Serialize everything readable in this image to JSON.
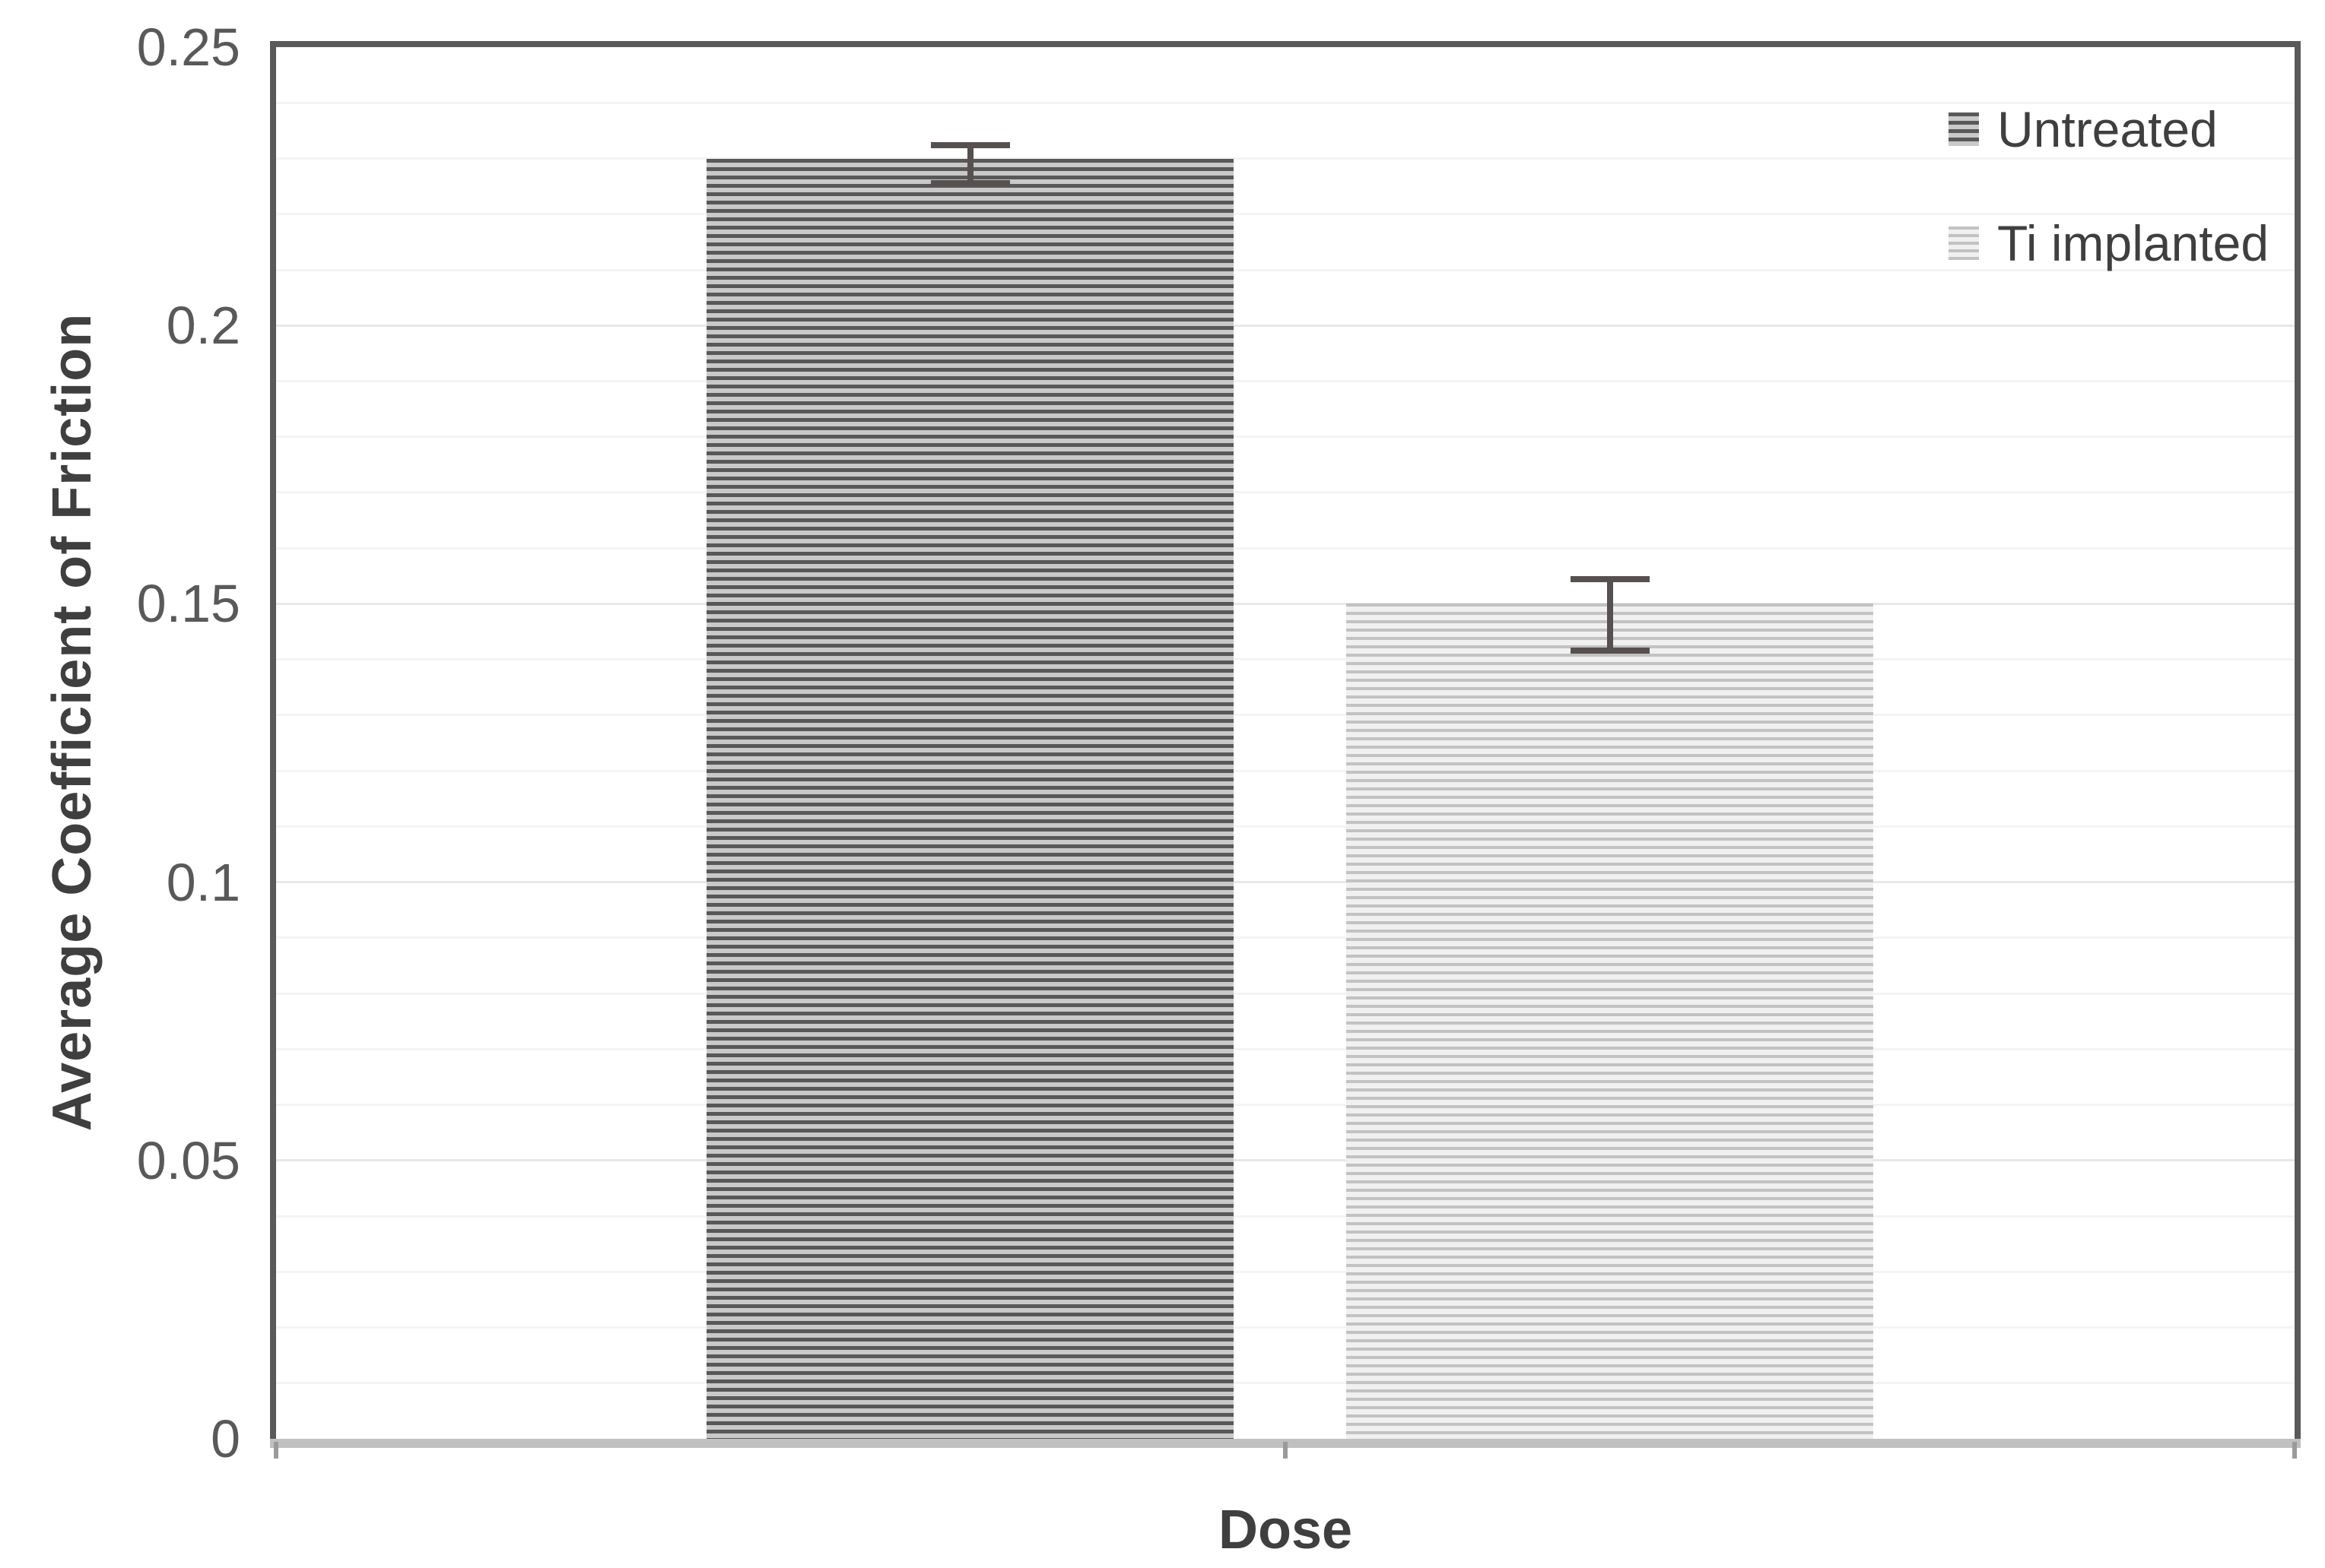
{
  "chart_data": {
    "type": "bar",
    "title": "",
    "xlabel": "Dose",
    "ylabel": "Average Coefficient of Friction",
    "ylim": [
      0,
      0.25
    ],
    "yticks": [
      {
        "value": 0,
        "label": "0"
      },
      {
        "value": 0.05,
        "label": "0.05"
      },
      {
        "value": 0.1,
        "label": "0.1"
      },
      {
        "value": 0.15,
        "label": "0.15"
      },
      {
        "value": 0.2,
        "label": "0.2"
      },
      {
        "value": 0.25,
        "label": "0.25"
      }
    ],
    "minor_grid_step": 0.01,
    "major_grid_step": 0.05,
    "grid": true,
    "legend_position": "top-right",
    "categories": [
      "Untreated",
      "Ti implanted"
    ],
    "series": [
      {
        "name": "Untreated",
        "value": 0.23,
        "error_plus": 0.003,
        "error_minus": 0.005
      },
      {
        "name": "Ti implanted",
        "value": 0.15,
        "error_plus": 0.005,
        "error_minus": 0.009
      }
    ]
  },
  "colors": {
    "background": "#ffffff",
    "axis_dark": "#595959",
    "axis_bottom": "#c0c0c0",
    "grid_major": "#e8e8e8",
    "grid_minor": "#f4f4f4",
    "tick_text": "#595959",
    "title_text": "#3f3f3f",
    "error_bar": "#565150",
    "x_tick": "#9a9a9a"
  },
  "hatches": {
    "dark": {
      "stripe": "#585858",
      "background": "#c9c9c9",
      "stripe_width": 5,
      "period": 11,
      "legend_stripe_width": 5,
      "legend_period": 11
    },
    "light": {
      "stripe": "#c2c2c2",
      "background": "#f0f0f0",
      "stripe_width": 4,
      "period": 11,
      "legend_stripe_width": 4,
      "legend_period": 10
    }
  }
}
